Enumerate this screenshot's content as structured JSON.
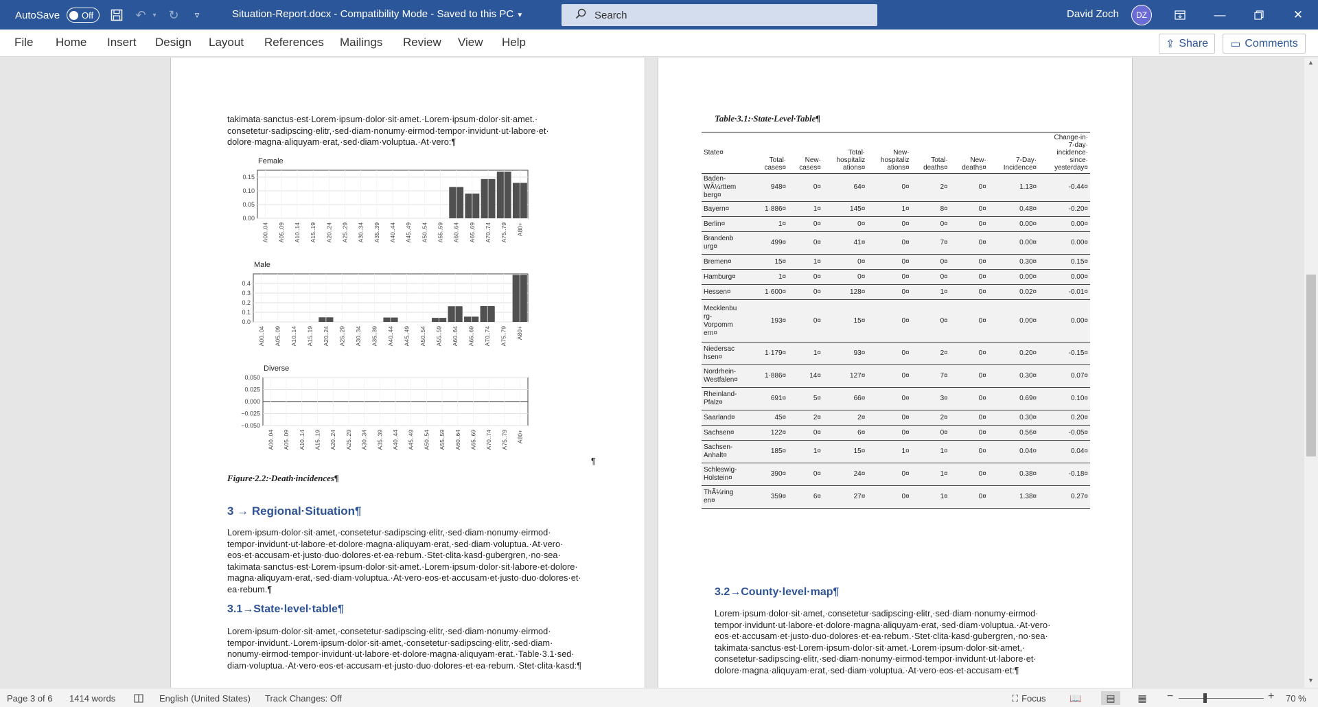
{
  "titlebar": {
    "autosave_label": "AutoSave",
    "autosave_state": "Off",
    "document_title": "Situation-Report.docx  -  Compatibility Mode  -  Saved to this PC",
    "search_placeholder": "Search",
    "user_name": "David  Zoch",
    "user_initials": "DZ",
    "accent_color": "#2b579a"
  },
  "ribbon": {
    "tabs": [
      "File",
      "Home",
      "Insert",
      "Design",
      "Layout",
      "References",
      "Mailings",
      "Review",
      "View",
      "Help"
    ],
    "share_label": "Share",
    "comments_label": "Comments"
  },
  "page3": {
    "intro_text": "takimata·sanctus·est·Lorem·ipsum·dolor·sit·amet.·Lorem·ipsum·dolor·sit·amet.·\nconsetetur·sadipscing·elitr,·sed·diam·nonumy·eirmod·tempor·invidunt·ut·labore·et·\ndolore·magna·aliquyam·erat,·sed·diam·voluptua.·At·vero:¶",
    "pilcrow": "¶",
    "figure_caption": "Figure·2.2:·Death·incidences¶",
    "heading_3": "3  →  Regional·Situation¶",
    "para_3": "Lorem·ipsum·dolor·sit·amet,·consetetur·sadipscing·elitr,·sed·diam·nonumy·eirmod·\ntempor·invidunt·ut·labore·et·dolore·magna·aliquyam·erat,·sed·diam·voluptua.·At·vero·\neos·et·accusam·et·justo·duo·dolores·et·ea·rebum.·Stet·clita·kasd·gubergren,·no·sea·\ntakimata·sanctus·est·Lorem·ipsum·dolor·sit·amet.·Lorem·ipsum·dolor·sit·labore·et·dolore·\nmagna·aliquyam·erat,·sed·diam·voluptua.·At·vero·eos·et·accusam·et·justo·duo·dolores·et·\nea·rebum.¶",
    "heading_3_1": "3.1→State·level·table¶",
    "para_3_1": "Lorem·ipsum·dolor·sit·amet,·consetetur·sadipscing·elitr,·sed·diam·nonumy·eirmod·\ntempor·invidunt.·Lorem·ipsum·dolor·sit·amet,·consetetur·sadipscing·elitr,·sed·diam·\nnonumy·eirmod·tempor·invidunt·ut·labore·et·dolore·magna·aliquyam·erat.·Table·3.1·sed·\ndiam·voluptua.·At·vero·eos·et·accusam·et·justo·duo·dolores·et·ea·rebum.·Stet·clita·kasd:¶"
  },
  "chart_data": [
    {
      "type": "bar",
      "title": "Female",
      "categories": [
        "A00..04",
        "A05..09",
        "A10..14",
        "A15..19",
        "A20..24",
        "A25..29",
        "A30..34",
        "A35..39",
        "A40..44",
        "A45..49",
        "A50..54",
        "A55..59",
        "A60..64",
        "A65..69",
        "A70..74",
        "A75..79",
        "A80+"
      ],
      "values": [
        0,
        0,
        0,
        0,
        0,
        0,
        0,
        0,
        0,
        0,
        0,
        0,
        0.114,
        0.09,
        0.143,
        0.17,
        0.129
      ],
      "yticks": [
        "0.15",
        "0.10",
        "0.05",
        "0.00"
      ],
      "ylim": [
        0,
        0.175
      ],
      "grid": true
    },
    {
      "type": "bar",
      "title": "Male",
      "categories": [
        "A00..04",
        "A05..09",
        "A10..14",
        "A15..19",
        "A20..24",
        "A25..29",
        "A30..34",
        "A35..39",
        "A40..44",
        "A45..49",
        "A50..54",
        "A55..59",
        "A60..64",
        "A65..69",
        "A70..74",
        "A75..79",
        "A80+"
      ],
      "values": [
        0,
        0,
        0,
        0,
        0.048,
        0,
        0,
        0,
        0.046,
        0,
        0,
        0.042,
        0.163,
        0.055,
        0.165,
        0,
        0.49
      ],
      "yticks": [
        "0.4",
        "0.3",
        "0.2",
        "0.1",
        "0.0"
      ],
      "ylim": [
        0,
        0.5
      ],
      "grid": true
    },
    {
      "type": "bar",
      "title": "Diverse",
      "categories": [
        "A00..04",
        "A05..09",
        "A10..14",
        "A15..19",
        "A20..24",
        "A25..29",
        "A30..34",
        "A35..39",
        "A40..44",
        "A45..49",
        "A50..54",
        "A55..59",
        "A60..64",
        "A65..69",
        "A70..74",
        "A75..79",
        "A80+"
      ],
      "values": [
        0,
        0,
        0,
        0,
        0,
        0,
        0,
        0,
        0,
        0,
        0,
        0,
        0,
        0,
        0,
        0,
        0
      ],
      "yticks": [
        "0.050",
        "0.025",
        "0.000",
        "−0.025",
        "−0.050"
      ],
      "ylim": [
        -0.05,
        0.05
      ],
      "grid": true
    }
  ],
  "page4": {
    "table_caption": "Table·3.1:·State·Level·Table¶",
    "columns": [
      "State¤",
      "Total·\ncases¤",
      "New·\ncases¤",
      "Total·\nhospitaliz\nations¤",
      "New·\nhospitaliz\nations¤",
      "Total·\ndeaths¤",
      "New·\ndeaths¤",
      "7-Day·\nIncidence¤",
      "Change·in·\n7-day·\nincidence·\nsince·\nyesterday¤"
    ],
    "rows": [
      [
        "Baden-\nWÃ¼rttem\nberg¤",
        "948¤",
        "0¤",
        "64¤",
        "0¤",
        "2¤",
        "0¤",
        "1.13¤",
        "-0.44¤"
      ],
      [
        "Bayern¤",
        "1·886¤",
        "1¤",
        "145¤",
        "1¤",
        "8¤",
        "0¤",
        "0.48¤",
        "-0.20¤"
      ],
      [
        "Berlin¤",
        "1¤",
        "0¤",
        "0¤",
        "0¤",
        "0¤",
        "0¤",
        "0.00¤",
        "0.00¤"
      ],
      [
        "Brandenb\nurg¤",
        "499¤",
        "0¤",
        "41¤",
        "0¤",
        "7¤",
        "0¤",
        "0.00¤",
        "0.00¤"
      ],
      [
        "Bremen¤",
        "15¤",
        "1¤",
        "0¤",
        "0¤",
        "0¤",
        "0¤",
        "0.30¤",
        "0.15¤"
      ],
      [
        "Hamburg¤",
        "1¤",
        "0¤",
        "0¤",
        "0¤",
        "0¤",
        "0¤",
        "0.00¤",
        "0.00¤"
      ],
      [
        "Hessen¤",
        "1·600¤",
        "0¤",
        "128¤",
        "0¤",
        "1¤",
        "0¤",
        "0.02¤",
        "-0.01¤"
      ],
      [
        "Mecklenbu\nrg-\nVorpomm\nern¤",
        "193¤",
        "0¤",
        "15¤",
        "0¤",
        "0¤",
        "0¤",
        "0.00¤",
        "0.00¤"
      ],
      [
        "Niedersac\nhsen¤",
        "1·179¤",
        "1¤",
        "93¤",
        "0¤",
        "2¤",
        "0¤",
        "0.20¤",
        "-0.15¤"
      ],
      [
        "Nordrhein-\nWestfalen¤",
        "1·886¤",
        "14¤",
        "127¤",
        "0¤",
        "7¤",
        "0¤",
        "0.30¤",
        "0.07¤"
      ],
      [
        "Rheinland-\nPfalz¤",
        "691¤",
        "5¤",
        "66¤",
        "0¤",
        "3¤",
        "0¤",
        "0.69¤",
        "0.10¤"
      ],
      [
        "Saarland¤",
        "45¤",
        "2¤",
        "2¤",
        "0¤",
        "2¤",
        "0¤",
        "0.30¤",
        "0.20¤"
      ],
      [
        "Sachsen¤",
        "122¤",
        "0¤",
        "6¤",
        "0¤",
        "0¤",
        "0¤",
        "0.56¤",
        "-0.05¤"
      ],
      [
        "Sachsen-\nAnhalt¤",
        "185¤",
        "1¤",
        "15¤",
        "1¤",
        "1¤",
        "0¤",
        "0.04¤",
        "0.04¤"
      ],
      [
        "Schleswig-\nHolstein¤",
        "390¤",
        "0¤",
        "24¤",
        "0¤",
        "1¤",
        "0¤",
        "0.38¤",
        "-0.18¤"
      ],
      [
        "ThÃ¼ring\nen¤",
        "359¤",
        "6¤",
        "27¤",
        "0¤",
        "1¤",
        "0¤",
        "1.38¤",
        "0.27¤"
      ]
    ],
    "heading_3_2": "3.2→County·level·map¶",
    "para_3_2": "Lorem·ipsum·dolor·sit·amet,·consetetur·sadipscing·elitr,·sed·diam·nonumy·eirmod·\ntempor·invidunt·ut·labore·et·dolore·magna·aliquyam·erat,·sed·diam·voluptua.·At·vero·\neos·et·accusam·et·justo·duo·dolores·et·ea·rebum.·Stet·clita·kasd·gubergren,·no·sea·\ntakimata·sanctus·est·Lorem·ipsum·dolor·sit·amet.·Lorem·ipsum·dolor·sit·amet,·\nconsetetur·sadipscing·elitr,·sed·diam·nonumy·eirmod·tempor·invidunt·ut·labore·et·\ndolore·magna·aliquyam·erat,·sed·diam·voluptua.·At·vero·eos·et·accusam·et:¶"
  },
  "statusbar": {
    "page": "Page 3 of 6",
    "words": "1414 words",
    "language": "English (United States)",
    "track_changes": "Track Changes: Off",
    "focus_label": "Focus",
    "zoom_minus": "−",
    "zoom_plus": "+",
    "zoom_level": "70 %",
    "zoom_fraction": 0.31
  }
}
